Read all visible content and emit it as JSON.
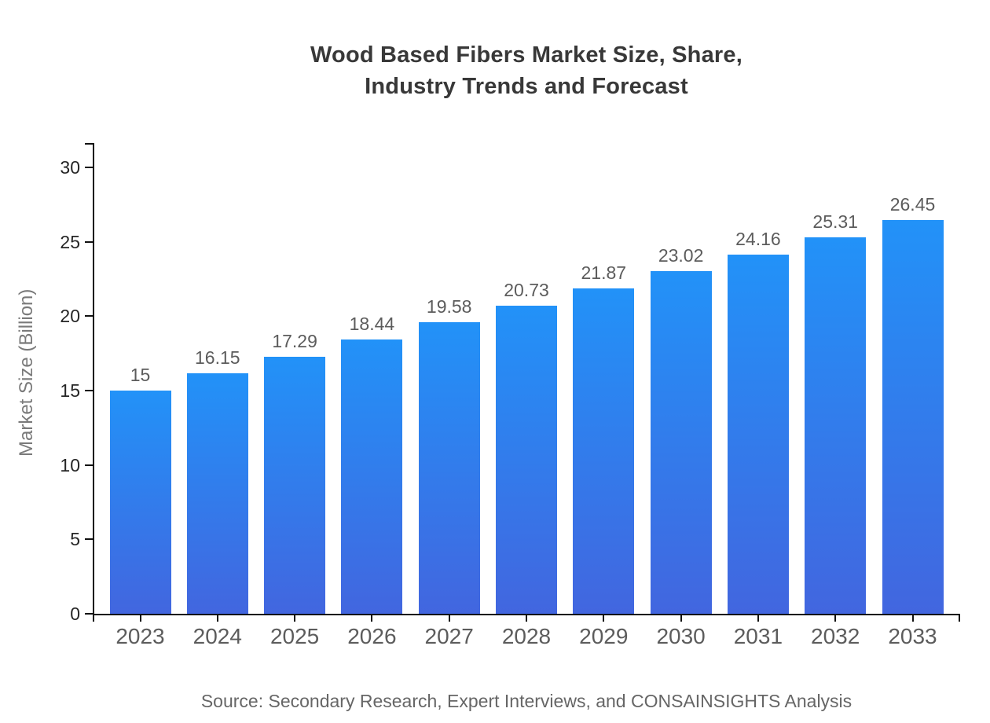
{
  "chart_data": {
    "type": "bar",
    "title": "Wood Based Fibers Market Size, Share,\nIndustry Trends and Forecast",
    "categories": [
      "2023",
      "2024",
      "2025",
      "2026",
      "2027",
      "2028",
      "2029",
      "2030",
      "2031",
      "2032",
      "2033"
    ],
    "values": [
      15,
      16.15,
      17.29,
      18.44,
      19.58,
      20.73,
      21.87,
      23.02,
      24.16,
      25.31,
      26.45
    ],
    "value_labels": [
      "15",
      "16.15",
      "17.29",
      "18.44",
      "19.58",
      "20.73",
      "21.87",
      "23.02",
      "24.16",
      "25.31",
      "26.45"
    ],
    "xlabel": "",
    "ylabel": "Market Size (Billion)",
    "ylim": [
      0,
      30
    ],
    "yticks": [
      0,
      5,
      10,
      15,
      20,
      25,
      30
    ],
    "grid": false,
    "legend": false,
    "source": "Source: Secondary Research, Expert Interviews, and CONSAINSIGHTS Analysis"
  },
  "colors": {
    "bar_gradient_top": "#2292F8",
    "bar_gradient_bottom": "#4266DF",
    "axis": "#111111",
    "title_text": "#383838",
    "tick_text": "#262626",
    "category_text": "#5c5c5c",
    "value_label_text": "#5c5c5c",
    "ylabel_text": "#7a7a7a",
    "source_text": "#666666"
  }
}
